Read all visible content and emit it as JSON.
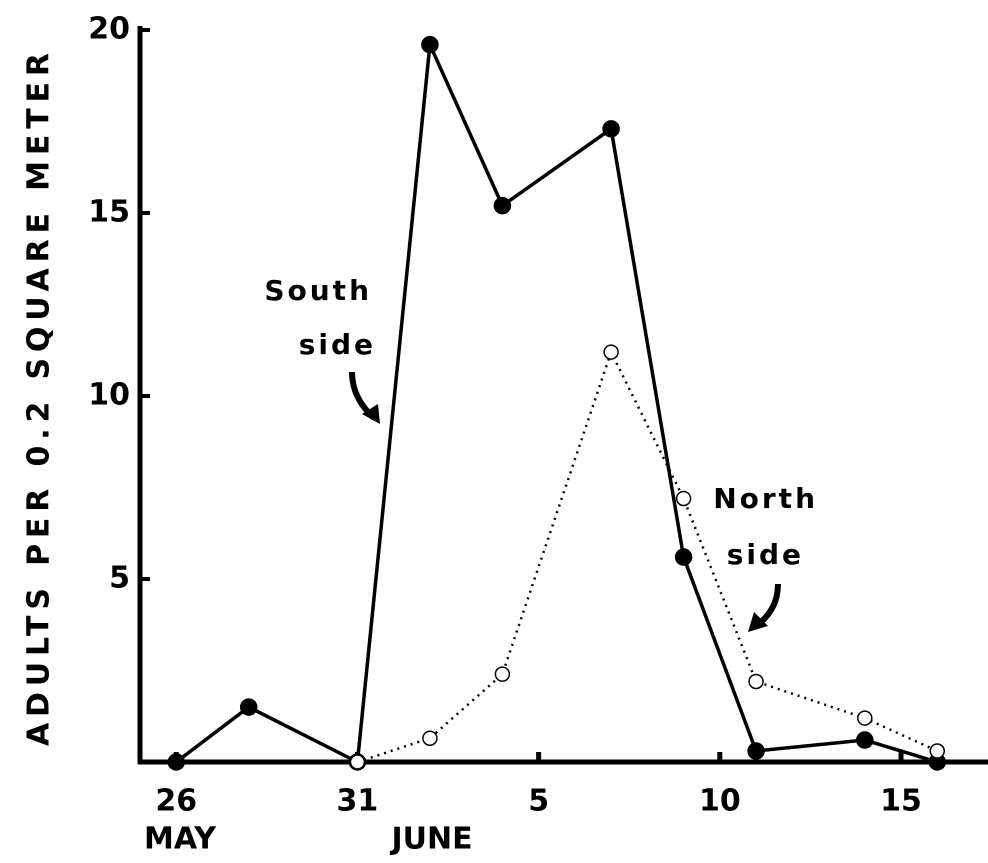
{
  "chart_data": {
    "type": "line",
    "y_label": "ADULTS PER 0.2 SQUARE METER",
    "x": [
      26,
      28,
      31,
      33,
      35,
      38,
      40,
      42,
      45,
      47
    ],
    "series": [
      {
        "name": "South side",
        "color": "#000000",
        "style": "solid",
        "marker": "filled",
        "values": [
          0,
          1.5,
          0,
          19.6,
          15.2,
          17.3,
          5.6,
          0.3,
          0.6,
          0
        ]
      },
      {
        "name": "North side",
        "color": "#000000",
        "style": "dotted",
        "marker": "open",
        "values": [
          null,
          null,
          0,
          0.65,
          2.4,
          11.2,
          7.2,
          2.2,
          1.2,
          0.3
        ]
      }
    ],
    "annotations": [
      {
        "lines": [
          "South",
          "side"
        ]
      },
      {
        "lines": [
          "North",
          "side"
        ]
      }
    ],
    "month_labels": [
      "MAY",
      "JUNE"
    ],
    "xlim": [
      25,
      48.4
    ],
    "xticks": [
      26,
      31,
      {
        "value": 36,
        "label": "5"
      },
      {
        "value": 41,
        "label": "10"
      },
      {
        "value": 46,
        "label": "15"
      }
    ],
    "ylim": [
      0,
      20
    ],
    "yticks": [
      5,
      10,
      15,
      20
    ],
    "grid": false
  }
}
